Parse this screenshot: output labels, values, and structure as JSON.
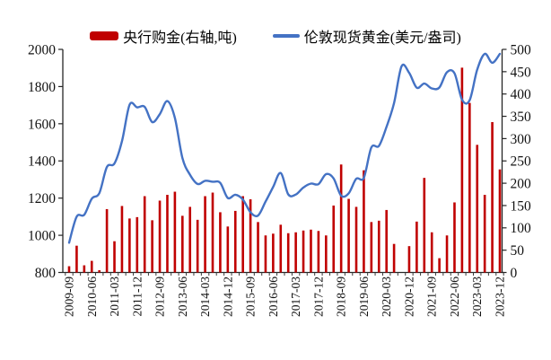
{
  "legend": {
    "bars_label": "央行购金(右轴,吨)",
    "line_label": "伦敦现货黄金(美元/盎司)"
  },
  "colors": {
    "bars": "#c00000",
    "line": "#4472c4",
    "axis": "#262626",
    "text": "#111111"
  },
  "chart_data": {
    "type": "bar",
    "subtype": "combo-bar-line",
    "title": "",
    "grid": false,
    "legend_position": "top-center",
    "categories": [
      "2009-09",
      "2009-12",
      "2010-03",
      "2010-06",
      "2010-09",
      "2010-12",
      "2011-03",
      "2011-06",
      "2011-09",
      "2011-12",
      "2012-03",
      "2012-06",
      "2012-09",
      "2012-12",
      "2013-03",
      "2013-06",
      "2013-09",
      "2013-12",
      "2014-03",
      "2014-06",
      "2014-09",
      "2014-12",
      "2015-03",
      "2015-06",
      "2015-09",
      "2015-12",
      "2016-03",
      "2016-06",
      "2016-09",
      "2016-12",
      "2017-03",
      "2017-06",
      "2017-09",
      "2017-12",
      "2018-03",
      "2018-06",
      "2018-09",
      "2018-12",
      "2019-03",
      "2019-06",
      "2019-09",
      "2019-12",
      "2020-03",
      "2020-06",
      "2020-09",
      "2020-12",
      "2021-03",
      "2021-06",
      "2021-09",
      "2021-12",
      "2022-03",
      "2022-06",
      "2022-09",
      "2022-12",
      "2023-03",
      "2023-06",
      "2023-09",
      "2023-12"
    ],
    "x_tick_labels": [
      "2009-09",
      "2010-06",
      "2011-03",
      "2011-12",
      "2012-09",
      "2013-06",
      "2014-03",
      "2014-12",
      "2015-09",
      "2016-06",
      "2017-03",
      "2017-12",
      "2018-09",
      "2019-06",
      "2020-03",
      "2020-12",
      "2021-09",
      "2022-06",
      "2023-03",
      "2023-12"
    ],
    "x_label_every_n": 3,
    "series": [
      {
        "name": "央行购金(右轴,吨)",
        "type": "bar",
        "axis": "right",
        "color": "#c00000",
        "values": [
          14,
          60,
          16,
          26,
          5,
          142,
          70,
          149,
          121,
          124,
          171,
          117,
          161,
          174,
          181,
          127,
          147,
          118,
          171,
          179,
          135,
          103,
          138,
          171,
          164,
          113,
          83,
          87,
          107,
          88,
          90,
          94,
          96,
          93,
          83,
          150,
          242,
          165,
          147,
          229,
          113,
          116,
          140,
          64,
          0,
          59,
          114,
          212,
          90,
          32,
          83,
          157,
          459,
          380,
          286,
          174,
          337,
          231
        ]
      },
      {
        "name": "伦敦现货黄金(美元/盎司)",
        "type": "line",
        "axis": "left",
        "color": "#4472c4",
        "values": [
          960,
          1100,
          1110,
          1197,
          1227,
          1367,
          1386,
          1506,
          1702,
          1688,
          1691,
          1609,
          1652,
          1722,
          1631,
          1415,
          1326,
          1276,
          1293,
          1288,
          1282,
          1201,
          1218,
          1192,
          1124,
          1106,
          1181,
          1260,
          1335,
          1220,
          1219,
          1257,
          1278,
          1275,
          1329,
          1306,
          1213,
          1226,
          1304,
          1309,
          1472,
          1481,
          1583,
          1711,
          1909,
          1874,
          1794,
          1816,
          1790,
          1795,
          1877,
          1871,
          1729,
          1726,
          1890,
          1976,
          1928,
          1976
        ]
      }
    ],
    "left_axis": {
      "min": 800,
      "max": 2000,
      "step": 200,
      "ticks": [
        800,
        1000,
        1200,
        1400,
        1600,
        1800,
        2000
      ]
    },
    "right_axis": {
      "min": 0,
      "max": 500,
      "step": 50,
      "ticks": [
        0,
        50,
        100,
        150,
        200,
        250,
        300,
        350,
        400,
        450,
        500
      ]
    }
  }
}
